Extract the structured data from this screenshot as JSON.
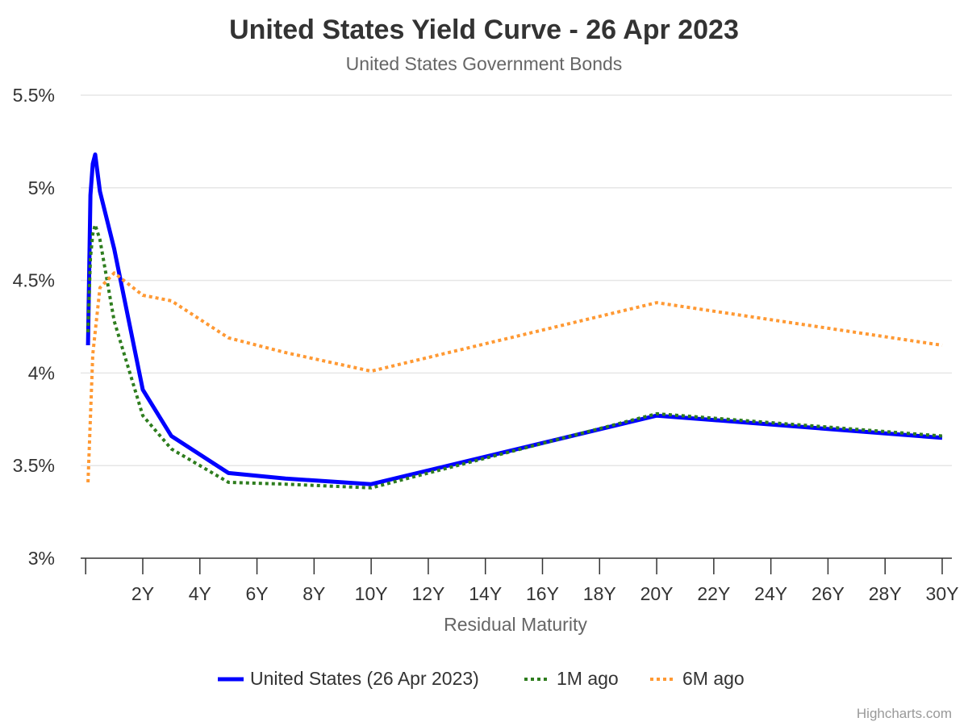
{
  "chart_data": {
    "type": "line",
    "title": "United States Yield Curve - 26 Apr 2023",
    "subtitle": "United States Government Bonds",
    "xlabel": "Residual Maturity",
    "ylabel": "",
    "xlim": [
      0,
      30
    ],
    "ylim": [
      3,
      5.5
    ],
    "x_ticks": [
      2,
      4,
      6,
      8,
      10,
      12,
      14,
      16,
      18,
      20,
      22,
      24,
      26,
      28,
      30
    ],
    "x_tick_labels": [
      "2Y",
      "4Y",
      "6Y",
      "8Y",
      "10Y",
      "12Y",
      "14Y",
      "16Y",
      "18Y",
      "20Y",
      "22Y",
      "24Y",
      "26Y",
      "28Y",
      "30Y"
    ],
    "y_ticks": [
      3,
      3.5,
      4,
      4.5,
      5,
      5.5
    ],
    "y_tick_labels": [
      "3%",
      "3.5%",
      "4%",
      "4.5%",
      "5%",
      "5.5%"
    ],
    "grid": "horizontal",
    "legend_placement": "bottom",
    "series": [
      {
        "name": "United States (26 Apr 2023)",
        "color": "#0000ff",
        "style": "solid",
        "x": [
          0.083,
          0.167,
          0.25,
          0.333,
          0.5,
          1,
          2,
          3,
          5,
          7,
          10,
          20,
          30
        ],
        "y": [
          4.15,
          4.96,
          5.13,
          5.18,
          4.98,
          4.67,
          3.91,
          3.66,
          3.46,
          3.43,
          3.4,
          3.77,
          3.65
        ]
      },
      {
        "name": "1M ago",
        "color": "#2e7d1e",
        "style": "dotted",
        "x": [
          0.083,
          0.167,
          0.25,
          0.333,
          0.5,
          1,
          2,
          3,
          5,
          7,
          10,
          20,
          30
        ],
        "y": [
          4.22,
          4.62,
          4.75,
          4.8,
          4.72,
          4.28,
          3.77,
          3.59,
          3.41,
          3.4,
          3.38,
          3.78,
          3.66
        ]
      },
      {
        "name": "6M ago",
        "color": "#ff9933",
        "style": "dotted",
        "x": [
          0.083,
          0.25,
          0.5,
          1,
          2,
          3,
          5,
          7,
          10,
          20,
          30
        ],
        "y": [
          3.41,
          4.1,
          4.46,
          4.54,
          4.42,
          4.39,
          4.19,
          4.11,
          4.01,
          4.38,
          4.15
        ]
      }
    ]
  },
  "credits": "Highcharts.com"
}
